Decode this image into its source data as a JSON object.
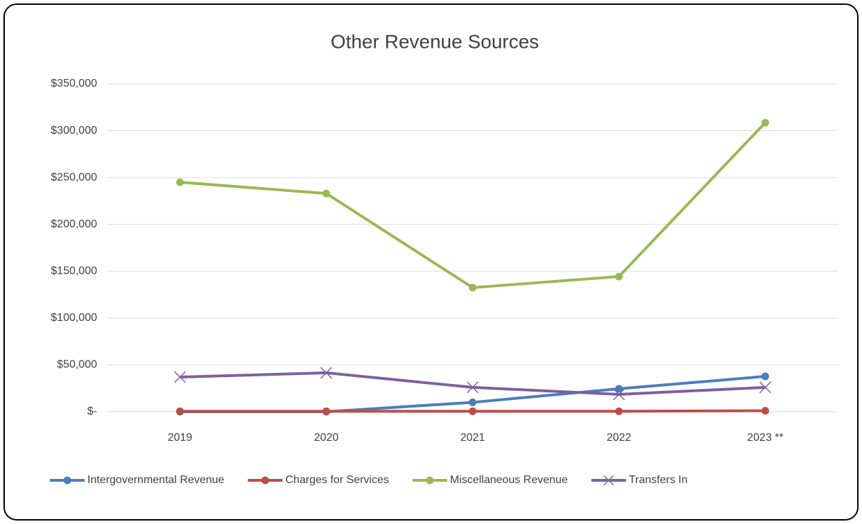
{
  "chart_data": {
    "type": "line",
    "title": "Other Revenue Sources",
    "categories": [
      "2019",
      "2020",
      "2021",
      "2022",
      "2023 **"
    ],
    "series": [
      {
        "name": "Intergovernmental Revenue",
        "color": "#4a7ebb",
        "marker": "circle",
        "values": [
          0,
          0,
          10000,
          24500,
          37700
        ]
      },
      {
        "name": "Charges for Services",
        "color": "#be4b48",
        "marker": "circle",
        "values": [
          500,
          500,
          500,
          500,
          1000
        ]
      },
      {
        "name": "Miscellaneous Revenue",
        "color": "#98b954",
        "marker": "circle",
        "values": [
          245000,
          233000,
          132500,
          144300,
          308600
        ]
      },
      {
        "name": "Transfers In",
        "color": "#7d5fa0",
        "marker": "x",
        "values": [
          37000,
          41500,
          26000,
          18500,
          26000
        ]
      }
    ],
    "ylim": [
      0,
      350000
    ],
    "yticks": [
      {
        "value": 0,
        "label": "$-"
      },
      {
        "value": 50000,
        "label": "$50,000"
      },
      {
        "value": 100000,
        "label": "$100,000"
      },
      {
        "value": 150000,
        "label": "$150,000"
      },
      {
        "value": 200000,
        "label": "$200,000"
      },
      {
        "value": 250000,
        "label": "$250,000"
      },
      {
        "value": 300000,
        "label": "$300,000"
      },
      {
        "value": 350000,
        "label": "$350,000"
      }
    ],
    "grid": true,
    "legend": "bottom"
  }
}
